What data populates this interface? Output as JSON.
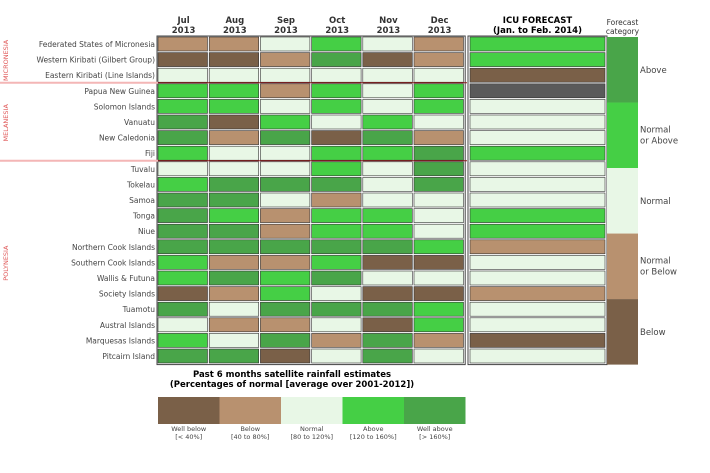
{
  "chart_data": {
    "type": "heatmap",
    "title": "Past 6 months satellite rainfall estimates",
    "subtitle": "(Percentages of normal [average over 2001-2012])",
    "months": [
      {
        "month": "Jul",
        "year": "2013"
      },
      {
        "month": "Aug",
        "year": "2013"
      },
      {
        "month": "Sep",
        "year": "2013"
      },
      {
        "month": "Oct",
        "year": "2013"
      },
      {
        "month": "Nov",
        "year": "2013"
      },
      {
        "month": "Dec",
        "year": "2013"
      }
    ],
    "forecast_header": "ICU FORECAST",
    "forecast_subheader": "(Jan. to Feb. 2014)",
    "category_header_line1": "Forecast",
    "category_header_line2": "category",
    "regions": [
      {
        "name": "MICRONESIA",
        "start": 0,
        "end": 2
      },
      {
        "name": "MELANESIA",
        "start": 3,
        "end": 7
      },
      {
        "name": "POLYNESIA",
        "start": 8,
        "end": 20
      }
    ],
    "rows": [
      {
        "name": "Federated States of Micronesia",
        "values": [
          2,
          2,
          3,
          4,
          3,
          2
        ],
        "forecast": 4
      },
      {
        "name": "Western Kiribati (Gilbert Group)",
        "values": [
          1,
          1,
          2,
          5,
          1,
          2
        ],
        "forecast": 4
      },
      {
        "name": "Eastern Kiribati (Line Islands)",
        "values": [
          3,
          3,
          3,
          3,
          3,
          3
        ],
        "forecast": 1
      },
      {
        "name": "Papua New Guinea",
        "values": [
          4,
          4,
          2,
          4,
          3,
          4
        ],
        "forecast": 0
      },
      {
        "name": "Solomon Islands",
        "values": [
          4,
          4,
          3,
          4,
          3,
          4
        ],
        "forecast": 3
      },
      {
        "name": "Vanuatu",
        "values": [
          5,
          1,
          4,
          3,
          4,
          3
        ],
        "forecast": 3
      },
      {
        "name": "New Caledonia",
        "values": [
          5,
          2,
          5,
          1,
          5,
          2
        ],
        "forecast": 3
      },
      {
        "name": "Fiji",
        "values": [
          4,
          3,
          3,
          4,
          4,
          5
        ],
        "forecast": 4
      },
      {
        "name": "Tuvalu",
        "values": [
          3,
          3,
          3,
          4,
          3,
          5
        ],
        "forecast": 3
      },
      {
        "name": "Tokelau",
        "values": [
          4,
          5,
          5,
          5,
          3,
          5
        ],
        "forecast": 3
      },
      {
        "name": "Samoa",
        "values": [
          5,
          5,
          3,
          2,
          3,
          3
        ],
        "forecast": 3
      },
      {
        "name": "Tonga",
        "values": [
          5,
          4,
          2,
          4,
          4,
          3
        ],
        "forecast": 4
      },
      {
        "name": "Niue",
        "values": [
          5,
          5,
          2,
          4,
          4,
          3
        ],
        "forecast": 4
      },
      {
        "name": "Northern Cook Islands",
        "values": [
          5,
          5,
          5,
          5,
          5,
          4
        ],
        "forecast": 2
      },
      {
        "name": "Southern Cook Islands",
        "values": [
          4,
          2,
          2,
          4,
          1,
          1
        ],
        "forecast": 3
      },
      {
        "name": "Wallis & Futuna",
        "values": [
          4,
          5,
          4,
          5,
          3,
          3
        ],
        "forecast": 3
      },
      {
        "name": "Society Islands",
        "values": [
          1,
          2,
          4,
          3,
          1,
          1
        ],
        "forecast": 2
      },
      {
        "name": "Tuamotu",
        "values": [
          5,
          3,
          5,
          5,
          5,
          4
        ],
        "forecast": 3
      },
      {
        "name": "Austral Islands",
        "values": [
          3,
          2,
          2,
          3,
          1,
          4
        ],
        "forecast": 3
      },
      {
        "name": "Marquesas Islands",
        "values": [
          4,
          3,
          5,
          2,
          5,
          2
        ],
        "forecast": 1
      },
      {
        "name": "Pitcairn Island",
        "values": [
          5,
          5,
          1,
          3,
          5,
          3
        ],
        "forecast": 3
      }
    ],
    "legend": [
      {
        "label": "Well below",
        "range": "[< 40%]",
        "color": "#7a6048"
      },
      {
        "label": "Below",
        "range": "[40 to 80%]",
        "color": "#b8916f"
      },
      {
        "label": "Normal",
        "range": "[80 to 120%]",
        "color": "#e8f7e6"
      },
      {
        "label": "Above",
        "range": "[120 to 160%]",
        "color": "#45cf45"
      },
      {
        "label": "Well above",
        "range": "[> 160%]",
        "color": "#49a549"
      }
    ],
    "forecast_categories": [
      {
        "label": "Above",
        "label2": "",
        "color": "#49a549"
      },
      {
        "label": "Normal",
        "label2": "or Above",
        "color": "#45cf45"
      },
      {
        "label": "Normal",
        "label2": "",
        "color": "#e8f7e6"
      },
      {
        "label": "Normal",
        "label2": "or Below",
        "color": "#b8916f"
      },
      {
        "label": "Below",
        "label2": "",
        "color": "#7a6048"
      }
    ],
    "no_data_color": "#5a5a5a",
    "region_color": "#e05a5a",
    "divider_color": "#f4b6b6"
  }
}
